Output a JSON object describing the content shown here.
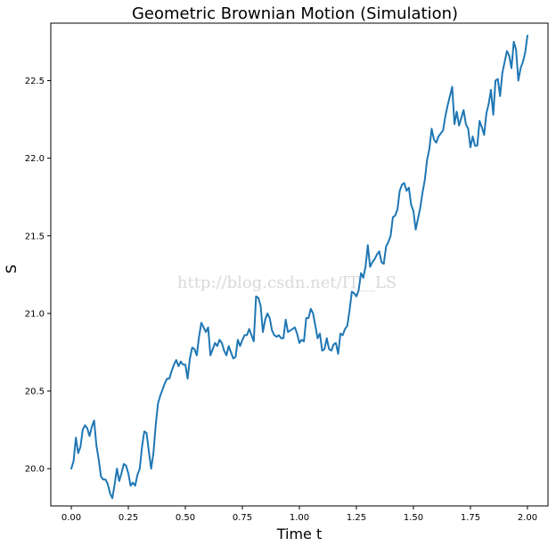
{
  "chart_data": {
    "type": "line",
    "title": "Geometric Brownian Motion (Simulation)",
    "xlabel": "Time t",
    "ylabel": "S",
    "xlim": [
      -0.09,
      2.09
    ],
    "ylim": [
      19.76,
      22.87
    ],
    "xticks": [
      0.0,
      0.25,
      0.5,
      0.75,
      1.0,
      1.25,
      1.5,
      1.75,
      2.0
    ],
    "xtick_labels": [
      "0.00",
      "0.25",
      "0.50",
      "0.75",
      "1.00",
      "1.25",
      "1.50",
      "1.75",
      "2.00"
    ],
    "yticks": [
      20.0,
      20.5,
      21.0,
      21.5,
      22.0,
      22.5
    ],
    "ytick_labels": [
      "20.0",
      "20.5",
      "21.0",
      "21.5",
      "22.0",
      "22.5"
    ],
    "grid": false,
    "legend": "none",
    "series_color": "#1f77b4",
    "watermark": "http://blog.csdn.net/IT__LS",
    "x": [
      0.0,
      0.01,
      0.02,
      0.03,
      0.04,
      0.05,
      0.06,
      0.07,
      0.08,
      0.09,
      0.1,
      0.11,
      0.12,
      0.13,
      0.14,
      0.15,
      0.16,
      0.17,
      0.18,
      0.19,
      0.2,
      0.21,
      0.22,
      0.23,
      0.24,
      0.25,
      0.26,
      0.27,
      0.28,
      0.29,
      0.3,
      0.31,
      0.32,
      0.33,
      0.34,
      0.35,
      0.36,
      0.37,
      0.38,
      0.39,
      0.4,
      0.41,
      0.42,
      0.43,
      0.44,
      0.45,
      0.46,
      0.47,
      0.48,
      0.49,
      0.5,
      0.51,
      0.52,
      0.53,
      0.54,
      0.55,
      0.56,
      0.57,
      0.58,
      0.59,
      0.6,
      0.61,
      0.62,
      0.63,
      0.64,
      0.65,
      0.66,
      0.67,
      0.68,
      0.69,
      0.7,
      0.71,
      0.72,
      0.73,
      0.74,
      0.75,
      0.76,
      0.77,
      0.78,
      0.79,
      0.8,
      0.81,
      0.82,
      0.83,
      0.84,
      0.85,
      0.86,
      0.87,
      0.88,
      0.89,
      0.9,
      0.91,
      0.92,
      0.93,
      0.94,
      0.95,
      0.96,
      0.97,
      0.98,
      0.99,
      1.0,
      1.01,
      1.02,
      1.03,
      1.04,
      1.05,
      1.06,
      1.07,
      1.08,
      1.09,
      1.1,
      1.11,
      1.12,
      1.13,
      1.14,
      1.15,
      1.16,
      1.17,
      1.18,
      1.19,
      1.2,
      1.21,
      1.22,
      1.23,
      1.24,
      1.25,
      1.26,
      1.27,
      1.28,
      1.29,
      1.3,
      1.31,
      1.32,
      1.33,
      1.34,
      1.35,
      1.36,
      1.37,
      1.38,
      1.39,
      1.4,
      1.41,
      1.42,
      1.43,
      1.44,
      1.45,
      1.46,
      1.47,
      1.48,
      1.49,
      1.5,
      1.51,
      1.52,
      1.53,
      1.54,
      1.55,
      1.56,
      1.57,
      1.58,
      1.59,
      1.6,
      1.61,
      1.62,
      1.63,
      1.64,
      1.65,
      1.66,
      1.67,
      1.68,
      1.69,
      1.7,
      1.71,
      1.72,
      1.73,
      1.74,
      1.75,
      1.76,
      1.77,
      1.78,
      1.79,
      1.8,
      1.81,
      1.82,
      1.83,
      1.84,
      1.85,
      1.86,
      1.87,
      1.88,
      1.89,
      1.9,
      1.91,
      1.92,
      1.93,
      1.94,
      1.95,
      1.96,
      1.97,
      1.98,
      1.99,
      2.0
    ],
    "y": [
      20.0,
      20.05,
      20.2,
      20.1,
      20.14,
      20.25,
      20.28,
      20.26,
      20.21,
      20.27,
      20.31,
      20.15,
      20.06,
      19.95,
      19.93,
      19.93,
      19.9,
      19.84,
      19.81,
      19.9,
      20.0,
      19.92,
      19.97,
      20.03,
      20.02,
      19.97,
      19.89,
      19.91,
      19.89,
      19.96,
      20.0,
      20.14,
      20.24,
      20.23,
      20.11,
      20.0,
      20.1,
      20.28,
      20.42,
      20.47,
      20.51,
      20.55,
      20.58,
      20.58,
      20.63,
      20.67,
      20.7,
      20.66,
      20.69,
      20.67,
      20.67,
      20.58,
      20.71,
      20.78,
      20.77,
      20.73,
      20.85,
      20.94,
      20.91,
      20.88,
      20.91,
      20.73,
      20.77,
      20.81,
      20.79,
      20.83,
      20.81,
      20.76,
      20.73,
      20.79,
      20.75,
      20.71,
      20.72,
      20.83,
      20.79,
      20.83,
      20.86,
      20.86,
      20.9,
      20.86,
      20.82,
      21.11,
      21.1,
      21.05,
      20.88,
      20.96,
      21.0,
      20.97,
      20.89,
      20.86,
      20.85,
      20.86,
      20.84,
      20.84,
      20.96,
      20.88,
      20.89,
      20.9,
      20.91,
      20.87,
      20.81,
      20.83,
      20.82,
      20.97,
      20.97,
      21.03,
      21.0,
      20.92,
      20.84,
      20.87,
      20.76,
      20.77,
      20.84,
      20.77,
      20.76,
      20.8,
      20.81,
      20.74,
      20.87,
      20.86,
      20.9,
      20.92,
      21.02,
      21.14,
      21.13,
      21.11,
      21.15,
      21.26,
      21.23,
      21.3,
      21.44,
      21.3,
      21.33,
      21.35,
      21.38,
      21.4,
      21.33,
      21.32,
      21.43,
      21.46,
      21.5,
      21.62,
      21.63,
      21.67,
      21.79,
      21.83,
      21.84,
      21.79,
      21.81,
      21.7,
      21.66,
      21.54,
      21.61,
      21.68,
      21.78,
      21.86,
      21.99,
      22.06,
      22.19,
      22.12,
      22.1,
      22.14,
      22.16,
      22.18,
      22.27,
      22.34,
      22.4,
      22.46,
      22.22,
      22.3,
      22.21,
      22.26,
      22.31,
      22.22,
      22.19,
      22.07,
      22.14,
      22.08,
      22.08,
      22.24,
      22.2,
      22.15,
      22.29,
      22.35,
      22.44,
      22.28,
      22.5,
      22.51,
      22.4,
      22.55,
      22.62,
      22.69,
      22.66,
      22.58,
      22.75,
      22.7,
      22.5,
      22.58,
      22.62,
      22.68,
      22.79
    ]
  }
}
